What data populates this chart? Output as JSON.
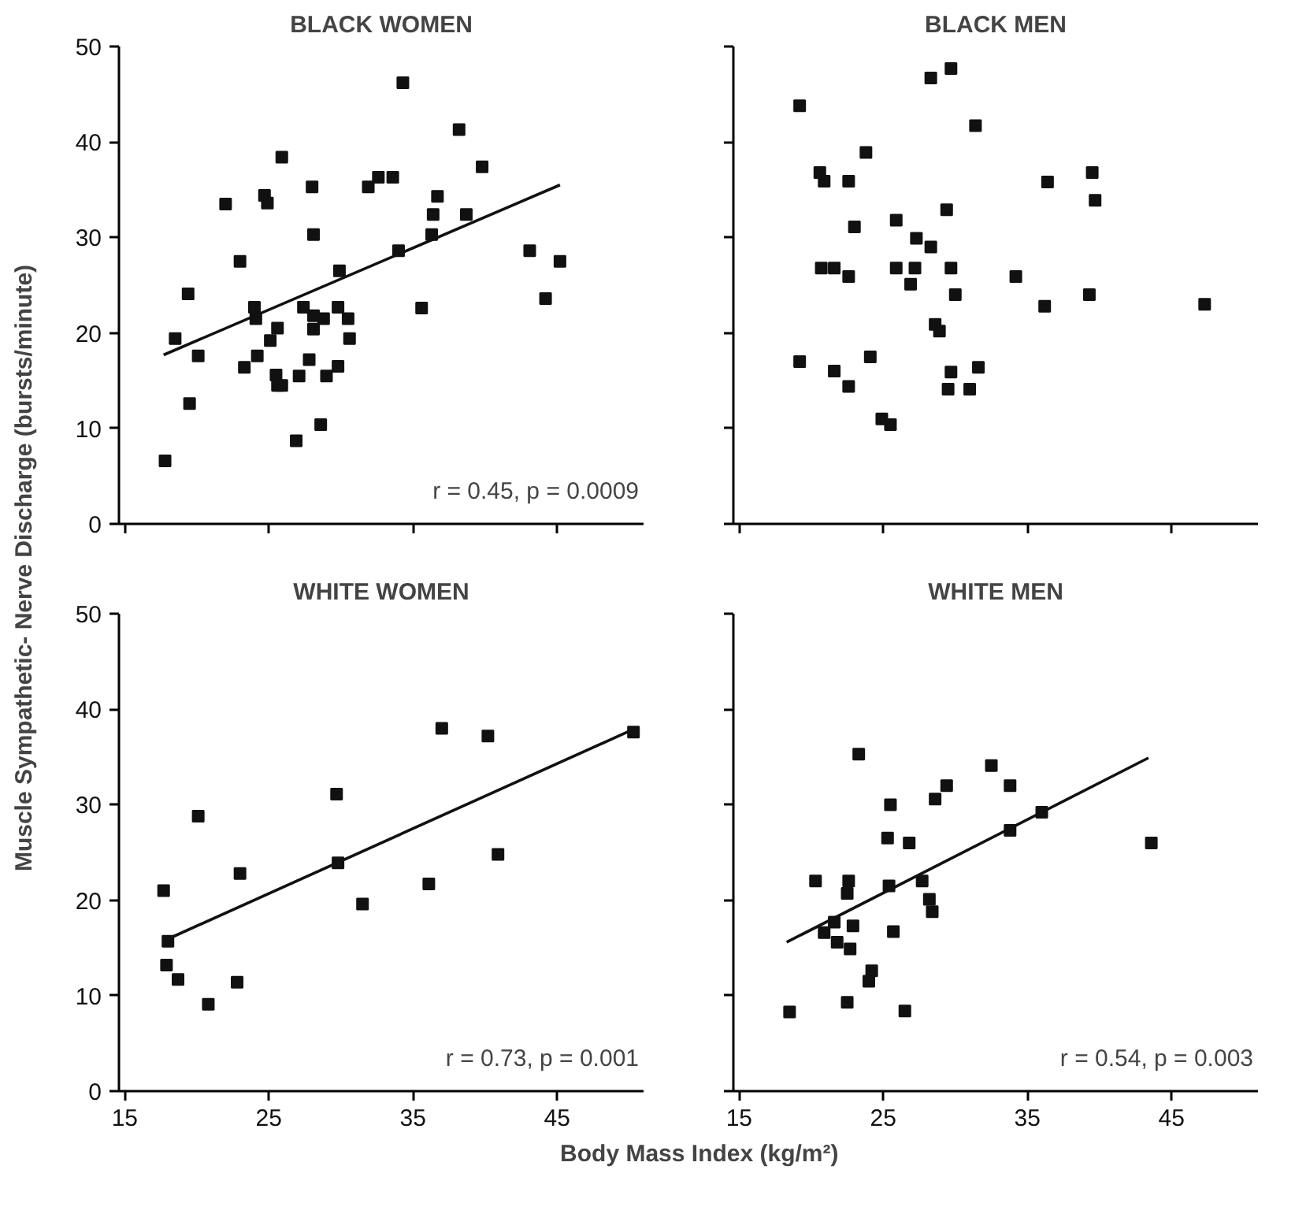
{
  "chart_data": [
    {
      "type": "scatter",
      "title": "BLACK WOMEN",
      "ylabel": "Muscle Sympathetic- Nerve Discharge (bursts/minute)",
      "tick_labels": "y",
      "xlim": [
        14.6,
        51
      ],
      "ylim": [
        0,
        50
      ],
      "xticks": [
        15,
        25,
        35,
        45
      ],
      "yticks": [
        0,
        10,
        20,
        30,
        40,
        50
      ],
      "annotations": [
        "r = 0.45, p = 0.0009"
      ],
      "series": [
        {
          "color": "#111111",
          "marker": "square",
          "x": [
            17.8,
            18.5,
            19.4,
            19.5,
            20.1,
            22.0,
            23.0,
            23.3,
            24.0,
            24.1,
            24.2,
            24.7,
            24.9,
            25.1,
            25.5,
            25.6,
            25.6,
            25.9,
            25.9,
            27.1,
            26.9,
            27.4,
            27.8,
            28.0,
            28.1,
            28.1,
            28.1,
            28.6,
            28.8,
            29.0,
            29.8,
            29.8,
            29.9,
            30.5,
            30.6,
            31.9,
            32.6,
            33.6,
            34.0,
            34.3,
            35.6,
            36.3,
            36.4,
            36.7,
            38.2,
            38.7,
            39.8,
            43.1,
            44.2,
            45.2
          ],
          "values": [
            6.6,
            19.4,
            24.1,
            12.6,
            17.6,
            33.5,
            27.5,
            16.4,
            22.7,
            21.5,
            17.6,
            34.4,
            33.6,
            19.2,
            15.6,
            20.5,
            14.5,
            14.5,
            38.4,
            15.5,
            8.7,
            22.7,
            17.2,
            35.3,
            30.3,
            21.8,
            20.4,
            10.4,
            21.5,
            15.5,
            22.7,
            16.5,
            26.5,
            21.5,
            19.4,
            35.3,
            36.3,
            36.3,
            28.6,
            46.2,
            22.6,
            30.3,
            32.4,
            34.3,
            41.3,
            32.4,
            37.4,
            28.6,
            23.6,
            27.5
          ]
        },
        {
          "type": "line",
          "color": "#111111",
          "x": [
            17.7,
            45.2
          ],
          "values": [
            17.7,
            35.5
          ]
        }
      ]
    },
    {
      "type": "scatter",
      "title": "BLACK MEN",
      "tick_labels": false,
      "xlim": [
        14.6,
        51
      ],
      "ylim": [
        0,
        50
      ],
      "xticks": [
        15,
        25,
        35,
        45
      ],
      "yticks": [
        0,
        10,
        20,
        30,
        40,
        50
      ],
      "series": [
        {
          "color": "#111111",
          "marker": "square",
          "x": [
            19.2,
            19.2,
            20.6,
            20.9,
            20.7,
            21.6,
            21.6,
            22.6,
            22.6,
            22.6,
            23.0,
            23.8,
            24.1,
            24.9,
            25.5,
            25.9,
            25.9,
            26.9,
            27.2,
            27.3,
            28.3,
            28.3,
            28.6,
            28.9,
            29.4,
            29.5,
            29.7,
            29.7,
            29.7,
            30.0,
            31.0,
            31.4,
            31.6,
            34.2,
            36.2,
            36.4,
            39.3,
            39.5,
            39.7,
            47.3
          ],
          "values": [
            43.8,
            17.0,
            36.8,
            35.9,
            26.8,
            26.8,
            16.0,
            35.9,
            25.9,
            14.4,
            31.1,
            38.9,
            17.5,
            11.0,
            10.4,
            31.8,
            26.8,
            25.1,
            26.8,
            29.9,
            46.7,
            29.0,
            20.9,
            20.2,
            32.9,
            14.1,
            47.7,
            26.8,
            15.9,
            24.0,
            14.1,
            41.7,
            16.4,
            25.9,
            22.8,
            35.8,
            24.0,
            36.8,
            33.9,
            23.0
          ]
        }
      ]
    },
    {
      "type": "scatter",
      "title": "WHITE WOMEN",
      "xlim": [
        14.6,
        51
      ],
      "ylim": [
        0,
        50
      ],
      "xticks": [
        15,
        25,
        35,
        45
      ],
      "yticks": [
        0,
        10,
        20,
        30,
        40,
        50
      ],
      "annotations": [
        "r = 0.73, p = 0.001"
      ],
      "series": [
        {
          "color": "#111111",
          "marker": "square",
          "x": [
            17.7,
            18.0,
            17.9,
            18.7,
            20.1,
            20.8,
            22.8,
            23.0,
            29.7,
            29.8,
            31.5,
            36.1,
            37.0,
            40.2,
            40.9,
            50.3
          ],
          "values": [
            21.0,
            15.7,
            13.2,
            11.7,
            28.8,
            9.1,
            11.4,
            22.8,
            31.1,
            23.9,
            19.6,
            21.7,
            38.0,
            37.2,
            24.8,
            37.6
          ]
        },
        {
          "type": "line",
          "color": "#111111",
          "x": [
            17.8,
            50.3
          ],
          "values": [
            15.8,
            37.9
          ]
        }
      ]
    },
    {
      "type": "scatter",
      "title": "WHITE MEN",
      "xlabel": "Body Mass Index (kg/m²)",
      "tick_labels": "x",
      "xlim": [
        14.6,
        51
      ],
      "ylim": [
        0,
        50
      ],
      "xticks": [
        15,
        25,
        35,
        45
      ],
      "yticks": [
        0,
        10,
        20,
        30,
        40,
        50
      ],
      "annotations": [
        "r = 0.54, p = 0.003"
      ],
      "series": [
        {
          "color": "#111111",
          "marker": "square",
          "x": [
            18.5,
            20.3,
            20.9,
            21.6,
            21.8,
            22.5,
            22.6,
            22.5,
            22.7,
            22.9,
            23.3,
            24.0,
            24.2,
            25.3,
            25.4,
            25.5,
            25.7,
            26.5,
            26.8,
            27.7,
            28.2,
            28.4,
            28.6,
            29.4,
            32.5,
            33.8,
            33.8,
            36.0,
            43.6
          ],
          "values": [
            8.3,
            22.0,
            16.6,
            17.7,
            15.6,
            9.3,
            22.0,
            20.7,
            14.9,
            17.3,
            35.3,
            11.5,
            12.6,
            26.5,
            21.5,
            30.0,
            16.7,
            8.4,
            26.0,
            22.0,
            20.1,
            18.8,
            30.6,
            32.0,
            34.1,
            32.0,
            27.3,
            29.2,
            26.0
          ]
        },
        {
          "type": "line",
          "color": "#111111",
          "x": [
            18.3,
            43.4
          ],
          "values": [
            15.6,
            34.9
          ]
        }
      ]
    }
  ]
}
